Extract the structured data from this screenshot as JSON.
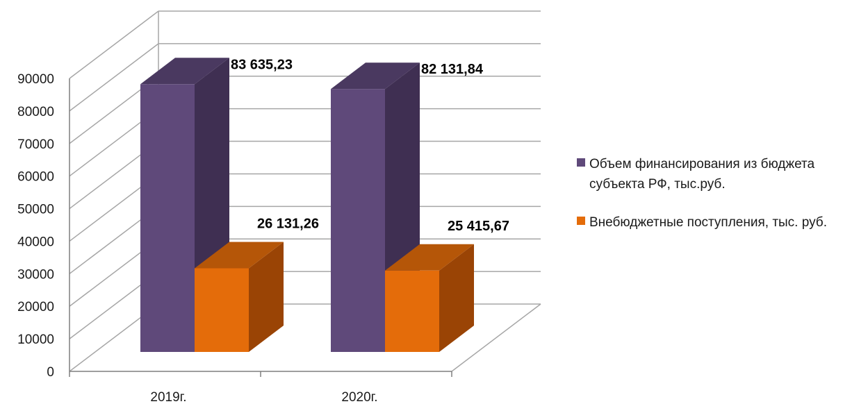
{
  "chart_data": {
    "type": "bar",
    "categories": [
      "2019г.",
      "2020г."
    ],
    "series": [
      {
        "name": "Объем финансирования из бюджета субъекта РФ, тыс.руб.",
        "values": [
          83635.23,
          82131.84
        ],
        "labels": [
          "83 635,23",
          "82 131,84"
        ],
        "color": "#5f497a",
        "side_color": "#3f2f52",
        "top_color": "#4a3960"
      },
      {
        "name": "Внебюджетные поступления, тыс. руб.",
        "values": [
          26131.26,
          25415.67
        ],
        "labels": [
          "26 131,26",
          "25 415,67"
        ],
        "color": "#e46c0a",
        "side_color": "#9a4405",
        "top_color": "#b55608"
      }
    ],
    "yticks": [
      "0",
      "10000",
      "20000",
      "30000",
      "40000",
      "50000",
      "60000",
      "70000",
      "80000",
      "90000"
    ],
    "ylim": [
      0,
      90000
    ],
    "grid": true,
    "legend": "right",
    "style": "3d"
  }
}
